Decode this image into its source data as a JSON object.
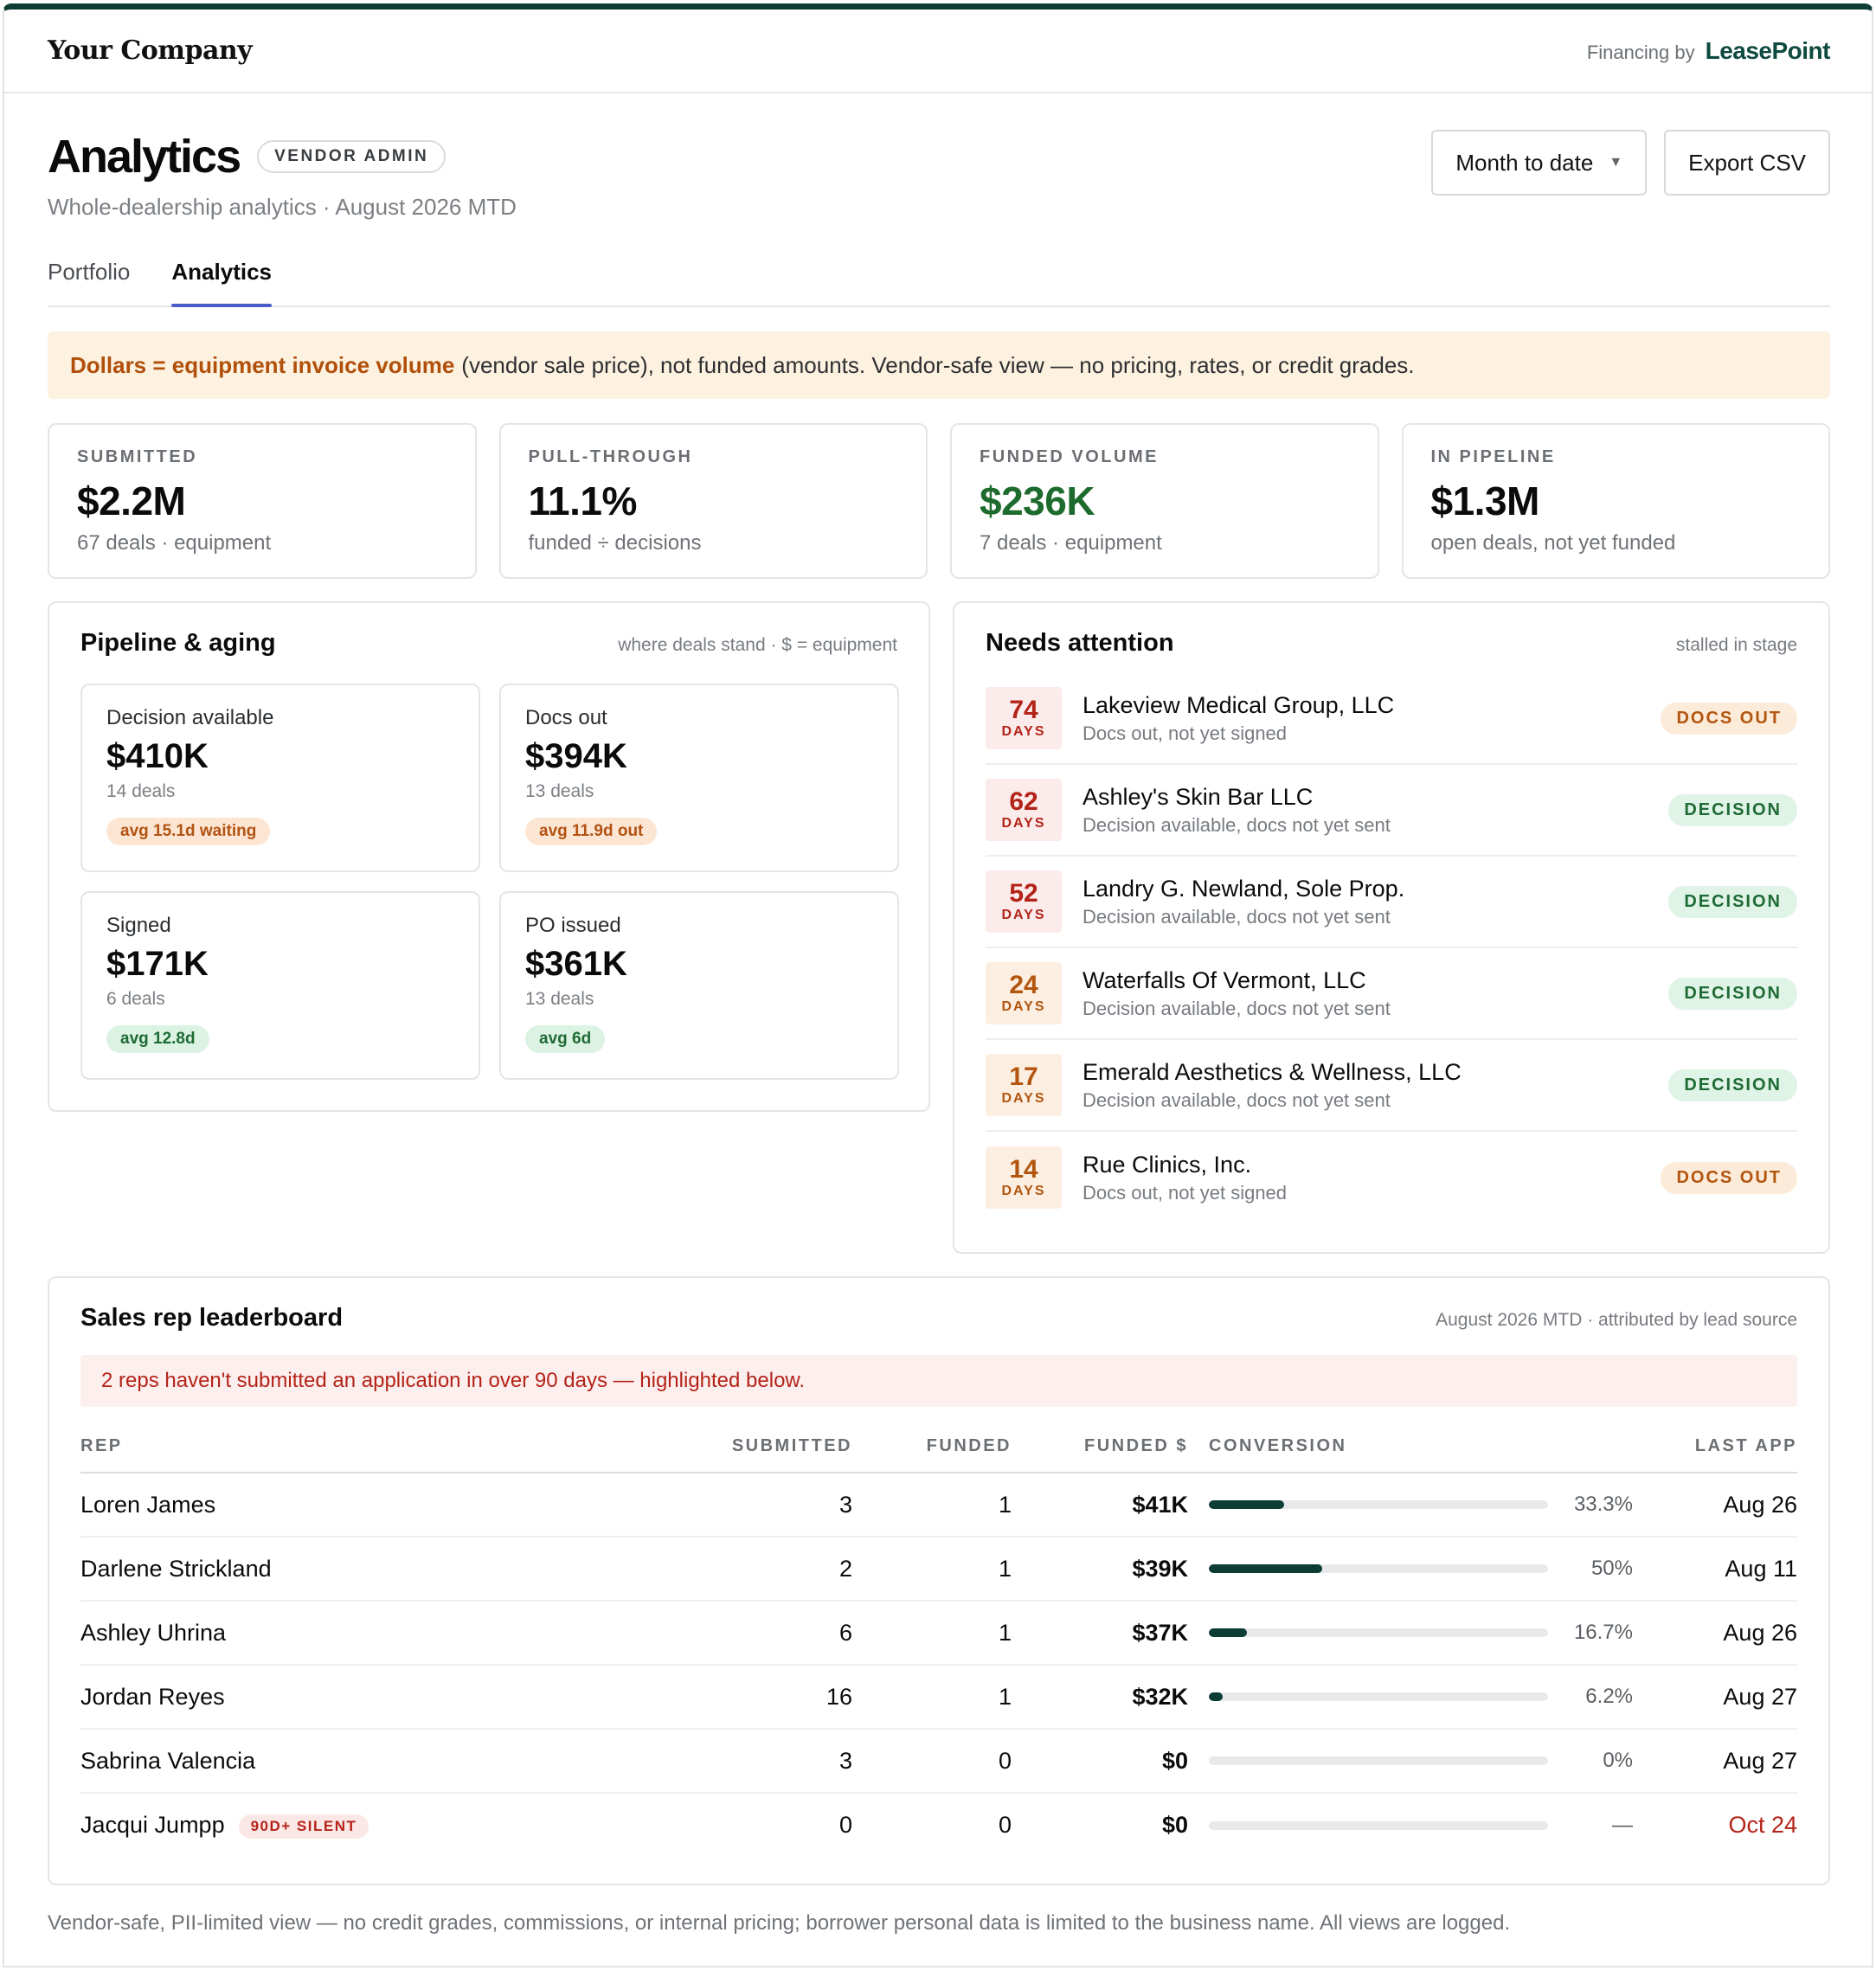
{
  "topbar": {
    "brand": "Your Company",
    "financing_by": "Financing by",
    "financing_brand": "LeasePoint"
  },
  "header": {
    "title": "Analytics",
    "role_badge": "VENDOR ADMIN",
    "subtitle": "Whole-dealership analytics · August 2026 MTD",
    "period_select": "Month to date",
    "export_label": "Export CSV"
  },
  "tabs": [
    {
      "label": "Portfolio"
    },
    {
      "label": "Analytics"
    }
  ],
  "notice": {
    "strong": "Dollars = equipment invoice volume",
    "rest": "(vendor sale price), not funded amounts. Vendor-safe view — no pricing, rates, or credit grades."
  },
  "stats": [
    {
      "label": "SUBMITTED",
      "value": "$2.2M",
      "note": "67 deals · equipment"
    },
    {
      "label": "PULL-THROUGH",
      "value": "11.1%",
      "note": "funded ÷ decisions"
    },
    {
      "label": "FUNDED VOLUME",
      "value": "$236K",
      "note": "7 deals · equipment"
    },
    {
      "label": "IN PIPELINE",
      "value": "$1.3M",
      "note": "open deals, not yet funded"
    }
  ],
  "pipeline": {
    "title": "Pipeline & aging",
    "subtitle": "where deals stand · $ = equipment",
    "stages": [
      {
        "label": "Decision available",
        "value": "$410K",
        "deals": "14 deals",
        "chip": "avg 15.1d waiting"
      },
      {
        "label": "Docs out",
        "value": "$394K",
        "deals": "13 deals",
        "chip": "avg 11.9d out"
      },
      {
        "label": "Signed",
        "value": "$171K",
        "deals": "6 deals",
        "chip": "avg 12.8d"
      },
      {
        "label": "PO issued",
        "value": "$361K",
        "deals": "13 deals",
        "chip": "avg 6d"
      }
    ]
  },
  "attention": {
    "title": "Needs attention",
    "subtitle": "stalled in stage",
    "days_unit": "DAYS",
    "items": [
      {
        "days": "74",
        "name": "Lakeview Medical Group, LLC",
        "desc": "Docs out, not yet signed",
        "status": "DOCS OUT"
      },
      {
        "days": "62",
        "name": "Ashley's Skin Bar LLC",
        "desc": "Decision available, docs not yet sent",
        "status": "DECISION"
      },
      {
        "days": "52",
        "name": "Landry G. Newland, Sole Prop.",
        "desc": "Decision available, docs not yet sent",
        "status": "DECISION"
      },
      {
        "days": "24",
        "name": "Waterfalls Of Vermont, LLC",
        "desc": "Decision available, docs not yet sent",
        "status": "DECISION"
      },
      {
        "days": "17",
        "name": "Emerald Aesthetics & Wellness, LLC",
        "desc": "Decision available, docs not yet sent",
        "status": "DECISION"
      },
      {
        "days": "14",
        "name": "Rue Clinics, Inc.",
        "desc": "Docs out, not yet signed",
        "status": "DOCS OUT"
      }
    ]
  },
  "leaderboard": {
    "title": "Sales rep leaderboard",
    "subtitle": "August 2026 MTD · attributed by lead source",
    "warning": "2 reps haven't submitted an application in over 90 days — highlighted below.",
    "columns": [
      "REP",
      "SUBMITTED",
      "FUNDED",
      "FUNDED $",
      "CONVERSION",
      "LAST APP"
    ],
    "silent_label": "90D+ SILENT",
    "rows": [
      {
        "rep": "Loren James",
        "submitted": "3",
        "funded": "1",
        "funded_amt": "$41K",
        "conversion": "33.3%",
        "conv_value": 0.333,
        "last": "Aug 26"
      },
      {
        "rep": "Darlene Strickland",
        "submitted": "2",
        "funded": "1",
        "funded_amt": "$39K",
        "conversion": "50%",
        "conv_value": 0.5,
        "last": "Aug 11"
      },
      {
        "rep": "Ashley Uhrina",
        "submitted": "6",
        "funded": "1",
        "funded_amt": "$37K",
        "conversion": "16.7%",
        "conv_value": 0.167,
        "last": "Aug 26"
      },
      {
        "rep": "Jordan Reyes",
        "submitted": "16",
        "funded": "1",
        "funded_amt": "$32K",
        "conversion": "6.2%",
        "conv_value": 0.062,
        "last": "Aug 27"
      },
      {
        "rep": "Sabrina Valencia",
        "submitted": "3",
        "funded": "0",
        "funded_amt": "$0",
        "conversion": "0%",
        "conv_value": 0,
        "last": "Aug 27"
      },
      {
        "rep": "Jacqui Jumpp",
        "submitted": "0",
        "funded": "0",
        "funded_amt": "$0",
        "conversion": "—",
        "conv_value": 0,
        "last": "Oct 24"
      }
    ]
  },
  "footer": "Vendor-safe, PII-limited view — no credit grades, commissions, or internal pricing; borrower personal data is limited to the business name. All views are logged."
}
